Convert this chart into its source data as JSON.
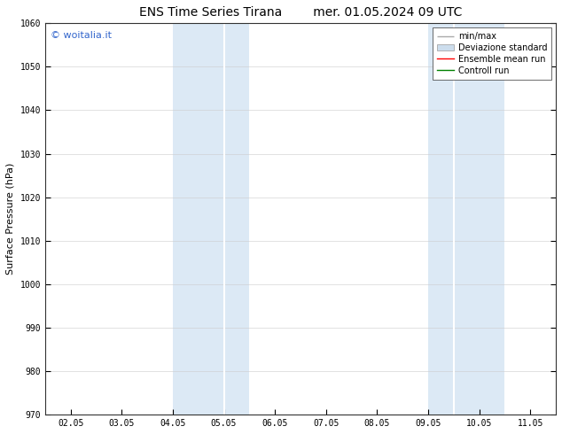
{
  "title": "ENS Time Series Tirana",
  "title2": "mer. 01.05.2024 09 UTC",
  "ylabel": "Surface Pressure (hPa)",
  "ylim": [
    970,
    1060
  ],
  "yticks": [
    970,
    980,
    990,
    1000,
    1010,
    1020,
    1030,
    1040,
    1050,
    1060
  ],
  "xtick_labels": [
    "02.05",
    "03.05",
    "04.05",
    "05.05",
    "06.05",
    "07.05",
    "08.05",
    "09.05",
    "10.05",
    "11.05"
  ],
  "xtick_positions": [
    0,
    1,
    2,
    3,
    4,
    5,
    6,
    7,
    8,
    9
  ],
  "xlim": [
    -0.5,
    9.5
  ],
  "shade_bands": [
    {
      "x_start": 2.0,
      "x_end": 2.5,
      "color": "#dce9f5"
    },
    {
      "x_start": 2.5,
      "x_end": 3.0,
      "color": "#dce9f5"
    },
    {
      "x_start": 3.0,
      "x_end": 3.5,
      "color": "#dce9f5"
    },
    {
      "x_start": 7.0,
      "x_end": 7.5,
      "color": "#dce9f5"
    },
    {
      "x_start": 7.5,
      "x_end": 8.0,
      "color": "#dce9f5"
    },
    {
      "x_start": 8.0,
      "x_end": 8.5,
      "color": "#dce9f5"
    }
  ],
  "shade_bands_simple": [
    {
      "x_start": 2.0,
      "x_end": 3.5,
      "color": "#dce9f5"
    },
    {
      "x_start": 7.0,
      "x_end": 8.5,
      "color": "#dce9f5"
    }
  ],
  "watermark_text": "© woitalia.it",
  "watermark_color": "#3366cc",
  "legend_entries": [
    {
      "label": "min/max",
      "color": "#aaaaaa",
      "lw": 1.0
    },
    {
      "label": "Deviazione standard",
      "color": "#ccdded",
      "lw": 6
    },
    {
      "label": "Ensemble mean run",
      "color": "red",
      "lw": 1.0
    },
    {
      "label": "Controll run",
      "color": "green",
      "lw": 1.0
    }
  ],
  "bg_color": "#ffffff",
  "title_fontsize": 10,
  "tick_fontsize": 7,
  "ylabel_fontsize": 8,
  "watermark_fontsize": 8,
  "legend_fontsize": 7
}
